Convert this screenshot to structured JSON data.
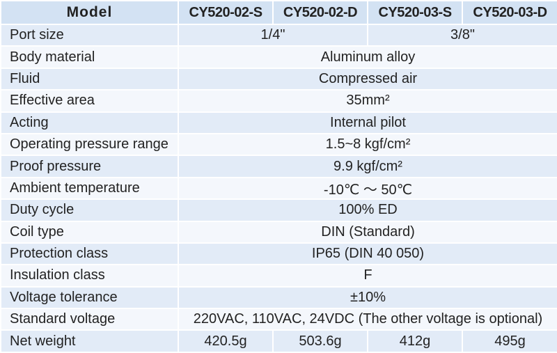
{
  "table": {
    "header": [
      "Model",
      "CY520-02-S",
      "CY520-02-D",
      "CY520-03-S",
      "CY520-03-D"
    ],
    "rows": [
      {
        "label": "Port size",
        "cells": [
          "1/4\"",
          "3/8\""
        ]
      },
      {
        "label": "Body material",
        "cells": [
          "Aluminum alloy"
        ]
      },
      {
        "label": "Fluid",
        "cells": [
          "Compressed air"
        ]
      },
      {
        "label": "Effective area",
        "cells": [
          "35mm²"
        ]
      },
      {
        "label": "Acting",
        "cells": [
          "Internal pilot"
        ]
      },
      {
        "label": "Operating pressure range",
        "cells": [
          "1.5~8 kgf/cm²"
        ]
      },
      {
        "label": "Proof pressure",
        "cells": [
          "9.9 kgf/cm²"
        ]
      },
      {
        "label": "Ambient temperature",
        "cells": [
          "-10℃ ～ 50℃"
        ]
      },
      {
        "label": "Duty cycle",
        "cells": [
          "100% ED"
        ]
      },
      {
        "label": "Coil type",
        "cells": [
          "DIN (Standard)"
        ]
      },
      {
        "label": "Protection class",
        "cells": [
          "IP65 (DIN 40 050)"
        ]
      },
      {
        "label": "Insulation class",
        "cells": [
          "F"
        ]
      },
      {
        "label": "Voltage tolerance",
        "cells": [
          "±10%"
        ]
      },
      {
        "label": "Standard voltage",
        "cells": [
          "220VAC, 110VAC, 24VDC (The other voltage is optional)"
        ]
      },
      {
        "label": "Net weight",
        "cells": [
          "420.5g",
          "503.6g",
          "412g",
          "495g"
        ]
      }
    ]
  }
}
